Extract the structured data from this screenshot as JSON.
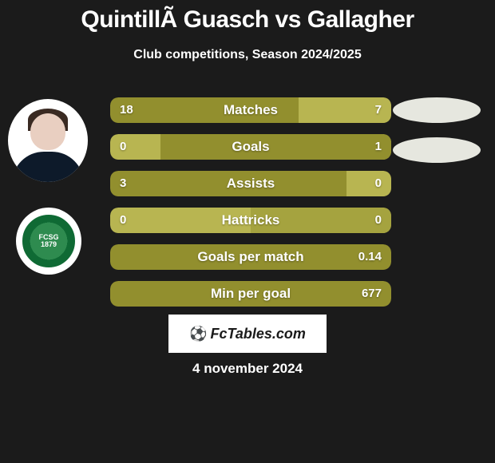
{
  "title": "QuintillÃ  Guasch vs Gallagher",
  "subtitle": "Club competitions, Season 2024/2025",
  "date": "4 november 2024",
  "branding_text": "FcTables.com",
  "club_badge": {
    "line1": "FCSG",
    "line2": "1879"
  },
  "colors": {
    "card_bg": "#1b1b1b",
    "text": "#ffffff",
    "olive_dark": "#928f2e",
    "olive_light": "#b8b551",
    "olive_mid": "#a5a33f",
    "branding_bg": "#ffffff",
    "branding_text": "#1b1b1b"
  },
  "rows": [
    {
      "label": "Matches",
      "left": "18",
      "right": "7",
      "bg": "#928f2e",
      "right_fill": "#b8b551",
      "right_pct": 33
    },
    {
      "label": "Goals",
      "left": "0",
      "right": "1",
      "bg": "#b8b551",
      "right_fill": "#928f2e",
      "right_pct": 82
    },
    {
      "label": "Assists",
      "left": "3",
      "right": "0",
      "bg": "#928f2e",
      "right_fill": "#b8b551",
      "right_pct": 16
    },
    {
      "label": "Hattricks",
      "left": "0",
      "right": "0",
      "bg": "#b8b551",
      "right_fill": "#a5a33f",
      "right_pct": 50
    },
    {
      "label": "Goals per match",
      "left": "",
      "right": "0.14",
      "bg": "#928f2e",
      "right_fill": "#928f2e",
      "right_pct": 0
    },
    {
      "label": "Min per goal",
      "left": "",
      "right": "677",
      "bg": "#928f2e",
      "right_fill": "#928f2e",
      "right_pct": 0
    }
  ]
}
